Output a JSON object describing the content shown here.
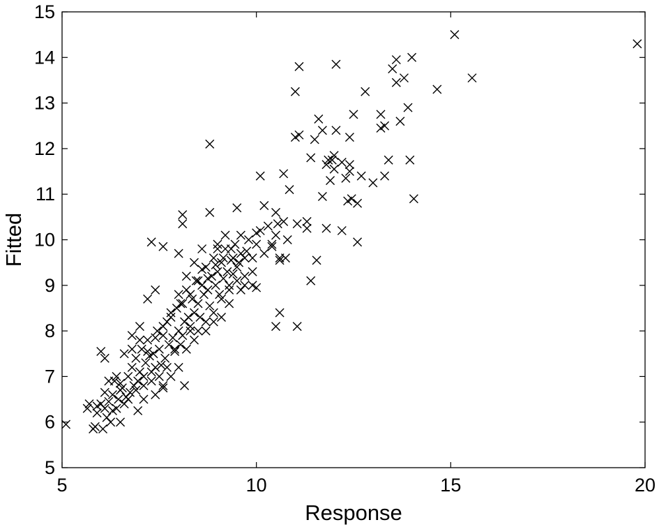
{
  "chart_data": {
    "type": "scatter",
    "title": "",
    "xlabel": "Response",
    "ylabel": "Fitted",
    "xlim": [
      5,
      20
    ],
    "ylim": [
      5,
      15
    ],
    "xticks": [
      5,
      10,
      15,
      20
    ],
    "yticks": [
      5,
      6,
      7,
      8,
      9,
      10,
      11,
      12,
      13,
      14,
      15
    ],
    "xtick_labels": [
      "5",
      "10",
      "15",
      "20"
    ],
    "ytick_labels": [
      "5",
      "6",
      "7",
      "8",
      "9",
      "10",
      "11",
      "12",
      "13",
      "14",
      "15"
    ],
    "grid": false,
    "marker": "x",
    "color": "#000000",
    "series": [
      {
        "points": [
          [
            5.1,
            5.95
          ],
          [
            5.65,
            6.3
          ],
          [
            5.7,
            6.4
          ],
          [
            5.8,
            5.85
          ],
          [
            5.85,
            5.9
          ],
          [
            5.9,
            6.35
          ],
          [
            6.0,
            6.4
          ],
          [
            6.05,
            5.85
          ],
          [
            6.1,
            6.3
          ],
          [
            6.15,
            6.1
          ],
          [
            6.2,
            6.45
          ],
          [
            6.25,
            6.0
          ],
          [
            6.3,
            6.6
          ],
          [
            6.35,
            6.9
          ],
          [
            6.4,
            6.3
          ],
          [
            6.45,
            6.5
          ],
          [
            6.5,
            6.0
          ],
          [
            6.55,
            6.75
          ],
          [
            6.6,
            6.4
          ],
          [
            6.65,
            6.55
          ],
          [
            6.7,
            7.0
          ],
          [
            6.75,
            6.65
          ],
          [
            6.8,
            7.2
          ],
          [
            6.85,
            6.8
          ],
          [
            6.9,
            7.4
          ],
          [
            6.95,
            6.9
          ],
          [
            7.0,
            7.1
          ],
          [
            7.05,
            7.6
          ],
          [
            7.1,
            7.0
          ],
          [
            7.15,
            7.3
          ],
          [
            7.2,
            7.8
          ],
          [
            7.25,
            7.45
          ],
          [
            7.3,
            6.9
          ],
          [
            7.35,
            7.5
          ],
          [
            7.4,
            7.2
          ],
          [
            7.45,
            8.0
          ],
          [
            7.5,
            7.6
          ],
          [
            7.55,
            7.25
          ],
          [
            7.6,
            7.9
          ],
          [
            7.65,
            7.4
          ],
          [
            7.7,
            8.2
          ],
          [
            7.75,
            7.7
          ],
          [
            7.8,
            8.3
          ],
          [
            7.85,
            7.85
          ],
          [
            7.9,
            7.55
          ],
          [
            7.95,
            8.5
          ],
          [
            8.0,
            8.0
          ],
          [
            8.05,
            7.7
          ],
          [
            8.1,
            8.6
          ],
          [
            8.15,
            8.2
          ],
          [
            8.2,
            8.9
          ],
          [
            8.25,
            8.3
          ],
          [
            8.3,
            8.0
          ],
          [
            8.35,
            8.7
          ],
          [
            8.4,
            8.4
          ],
          [
            8.45,
            9.1
          ],
          [
            8.5,
            8.6
          ],
          [
            8.55,
            8.3
          ],
          [
            8.6,
            9.0
          ],
          [
            8.65,
            8.8
          ],
          [
            8.7,
            9.4
          ],
          [
            8.75,
            8.9
          ],
          [
            8.8,
            8.55
          ],
          [
            8.85,
            9.2
          ],
          [
            8.9,
            9.6
          ],
          [
            8.95,
            9.0
          ],
          [
            9.0,
            9.3
          ],
          [
            9.05,
            8.8
          ],
          [
            9.1,
            9.5
          ],
          [
            9.15,
            9.15
          ],
          [
            9.2,
            9.8
          ],
          [
            9.25,
            9.3
          ],
          [
            9.3,
            9.0
          ],
          [
            9.35,
            9.55
          ],
          [
            9.4,
            9.25
          ],
          [
            9.45,
            9.9
          ],
          [
            9.5,
            9.4
          ],
          [
            9.6,
            9.7
          ],
          [
            9.7,
            9.2
          ],
          [
            9.8,
            10.0
          ],
          [
            9.9,
            9.6
          ],
          [
            10.0,
            9.9
          ],
          [
            10.1,
            10.2
          ],
          [
            10.2,
            9.7
          ],
          [
            10.3,
            10.3
          ],
          [
            10.4,
            9.9
          ],
          [
            10.5,
            10.1
          ],
          [
            10.6,
            9.6
          ],
          [
            10.7,
            10.4
          ],
          [
            10.8,
            10.0
          ],
          [
            5.9,
            6.2
          ],
          [
            6.1,
            6.65
          ],
          [
            6.3,
            6.25
          ],
          [
            6.5,
            6.85
          ],
          [
            6.7,
            6.5
          ],
          [
            6.9,
            6.7
          ],
          [
            7.1,
            6.8
          ],
          [
            7.3,
            7.1
          ],
          [
            7.5,
            7.0
          ],
          [
            7.7,
            7.2
          ],
          [
            7.9,
            7.6
          ],
          [
            8.1,
            7.9
          ],
          [
            8.3,
            8.1
          ],
          [
            8.5,
            8.0
          ],
          [
            8.7,
            8.2
          ],
          [
            8.9,
            8.4
          ],
          [
            9.1,
            8.7
          ],
          [
            9.3,
            8.9
          ],
          [
            9.5,
            9.1
          ],
          [
            9.7,
            9.0
          ],
          [
            6.0,
            7.55
          ],
          [
            6.1,
            7.4
          ],
          [
            6.4,
            7.0
          ],
          [
            6.6,
            7.5
          ],
          [
            6.8,
            7.9
          ],
          [
            7.0,
            8.1
          ],
          [
            7.2,
            8.7
          ],
          [
            7.4,
            8.9
          ],
          [
            7.3,
            9.95
          ],
          [
            7.6,
            9.85
          ],
          [
            8.0,
            9.7
          ],
          [
            8.1,
            10.55
          ],
          [
            8.1,
            10.35
          ],
          [
            8.6,
            9.8
          ],
          [
            8.8,
            10.6
          ],
          [
            9.0,
            9.9
          ],
          [
            9.5,
            10.7
          ],
          [
            10.2,
            10.75
          ],
          [
            9.6,
            10.1
          ],
          [
            10.0,
            10.15
          ],
          [
            8.8,
            12.1
          ],
          [
            10.1,
            11.4
          ],
          [
            10.7,
            11.45
          ],
          [
            10.85,
            11.1
          ],
          [
            11.0,
            12.25
          ],
          [
            11.1,
            12.3
          ],
          [
            11.0,
            13.25
          ],
          [
            11.1,
            13.8
          ],
          [
            11.4,
            11.8
          ],
          [
            11.5,
            12.2
          ],
          [
            11.6,
            12.65
          ],
          [
            11.7,
            12.4
          ],
          [
            11.8,
            11.65
          ],
          [
            11.9,
            11.3
          ],
          [
            12.0,
            11.85
          ],
          [
            12.05,
            12.4
          ],
          [
            12.2,
            11.7
          ],
          [
            12.3,
            11.35
          ],
          [
            12.4,
            12.25
          ],
          [
            12.5,
            12.75
          ],
          [
            12.7,
            11.4
          ],
          [
            12.8,
            13.25
          ],
          [
            13.0,
            11.25
          ],
          [
            13.2,
            12.45
          ],
          [
            13.3,
            11.4
          ],
          [
            13.4,
            11.75
          ],
          [
            13.5,
            13.75
          ],
          [
            13.6,
            13.45
          ],
          [
            13.7,
            12.6
          ],
          [
            13.8,
            13.55
          ],
          [
            13.9,
            12.9
          ],
          [
            14.0,
            14.0
          ],
          [
            13.95,
            11.75
          ],
          [
            14.05,
            10.9
          ],
          [
            13.6,
            13.95
          ],
          [
            13.2,
            12.75
          ],
          [
            12.05,
            13.85
          ],
          [
            11.95,
            11.75
          ],
          [
            12.4,
            11.65
          ],
          [
            12.35,
            10.85
          ],
          [
            12.45,
            10.9
          ],
          [
            11.7,
            10.95
          ],
          [
            11.8,
            10.25
          ],
          [
            12.2,
            10.2
          ],
          [
            11.3,
            10.25
          ],
          [
            11.05,
            10.35
          ],
          [
            10.55,
            10.35
          ],
          [
            10.5,
            10.6
          ],
          [
            10.4,
            9.85
          ],
          [
            10.6,
            9.55
          ],
          [
            10.75,
            9.6
          ],
          [
            10.5,
            8.1
          ],
          [
            10.6,
            8.4
          ],
          [
            11.05,
            8.1
          ],
          [
            11.4,
            9.1
          ],
          [
            11.55,
            9.55
          ],
          [
            12.6,
            9.95
          ],
          [
            11.3,
            10.4
          ],
          [
            14.65,
            13.3
          ],
          [
            15.1,
            14.5
          ],
          [
            15.55,
            13.55
          ],
          [
            19.8,
            14.3
          ],
          [
            13.3,
            12.5
          ],
          [
            12.0,
            11.55
          ],
          [
            12.4,
            11.5
          ],
          [
            11.85,
            11.75
          ],
          [
            12.6,
            10.8
          ],
          [
            8.0,
            8.8
          ],
          [
            8.2,
            9.2
          ],
          [
            8.4,
            9.5
          ],
          [
            8.6,
            9.35
          ],
          [
            9.0,
            9.8
          ],
          [
            9.2,
            10.1
          ],
          [
            9.4,
            9.6
          ],
          [
            9.7,
            9.6
          ],
          [
            9.9,
            9.3
          ],
          [
            10.0,
            8.95
          ],
          [
            9.9,
            9.0
          ],
          [
            9.6,
            8.9
          ],
          [
            9.3,
            8.6
          ],
          [
            9.1,
            8.3
          ],
          [
            8.9,
            8.2
          ],
          [
            8.7,
            8.0
          ],
          [
            8.4,
            7.8
          ],
          [
            8.2,
            7.6
          ],
          [
            8.0,
            7.2
          ],
          [
            7.8,
            7.0
          ],
          [
            7.6,
            6.8
          ],
          [
            7.4,
            6.6
          ],
          [
            7.1,
            6.5
          ],
          [
            8.15,
            6.8
          ],
          [
            7.6,
            6.75
          ],
          [
            6.95,
            6.25
          ],
          [
            6.5,
            6.7
          ],
          [
            6.2,
            6.9
          ],
          [
            6.8,
            7.6
          ],
          [
            7.0,
            7.8
          ],
          [
            7.2,
            7.55
          ],
          [
            7.4,
            7.85
          ],
          [
            7.6,
            8.1
          ],
          [
            7.8,
            8.4
          ],
          [
            8.05,
            8.6
          ],
          [
            8.3,
            8.8
          ],
          [
            8.5,
            9.1
          ],
          [
            8.75,
            9.15
          ],
          [
            8.95,
            9.45
          ],
          [
            9.15,
            9.6
          ],
          [
            9.35,
            9.8
          ],
          [
            9.55,
            9.5
          ],
          [
            9.75,
            9.75
          ]
        ]
      }
    ]
  }
}
